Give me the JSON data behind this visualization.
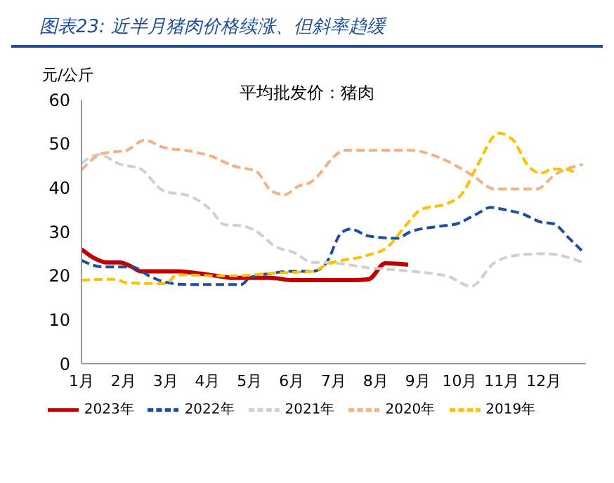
{
  "chart_data": {
    "type": "line",
    "title": "图表23: 近半月猪肉价格续涨、但斜率趋缓",
    "subtitle": "平均批发价：猪肉",
    "ylabel": "元/公斤",
    "xlim": [
      1,
      13
    ],
    "xticks": [
      {
        "value": 1,
        "label": "1月"
      },
      {
        "value": 2,
        "label": "2月"
      },
      {
        "value": 3,
        "label": "3月"
      },
      {
        "value": 4,
        "label": "4月"
      },
      {
        "value": 5,
        "label": "5月"
      },
      {
        "value": 6,
        "label": "6月"
      },
      {
        "value": 7,
        "label": "7月"
      },
      {
        "value": 8,
        "label": "8月"
      },
      {
        "value": 9,
        "label": "9月"
      },
      {
        "value": 10,
        "label": "10月"
      },
      {
        "value": 11,
        "label": "11月"
      },
      {
        "value": 12,
        "label": "12月"
      }
    ],
    "ylim": [
      0,
      60
    ],
    "yticks": [
      0,
      10,
      20,
      30,
      40,
      50,
      60
    ],
    "legend": "bottom",
    "marker": "none",
    "series": [
      {
        "name": "2023年",
        "color": "#c00000",
        "line_style": "solid",
        "x": [
          1,
          1.3,
          1.6,
          1.9,
          2.2,
          2.4,
          3,
          3.3,
          3.8,
          4.2,
          4.6,
          5,
          5.5,
          6,
          6.5,
          7,
          7.5,
          7.83,
          8.23,
          8.77
        ],
        "values": [
          26,
          24,
          23,
          23,
          22,
          21,
          21,
          21,
          20.5,
          20,
          19.5,
          19.5,
          19.5,
          19,
          19,
          19,
          19,
          19.2,
          22.8,
          22.5
        ]
      },
      {
        "name": "2022年",
        "color": "#1f4e9c",
        "line_style": "dashed",
        "x": [
          1,
          1.5,
          2.2,
          2.6,
          3,
          3.5,
          4,
          4.5,
          4.8,
          5,
          5.5,
          6,
          6.5,
          6.83,
          7.17,
          7.4,
          7.83,
          8.5,
          8.83,
          9.5,
          9.93,
          10.4,
          10.73,
          11.07,
          11.5,
          11.93,
          12.23,
          12.6,
          12.9
        ],
        "values": [
          23.5,
          22,
          22,
          20,
          18.5,
          18,
          18,
          18,
          18,
          19.5,
          20.5,
          21,
          21,
          23,
          29.6,
          30.6,
          29,
          28.5,
          30,
          31.2,
          31.8,
          34,
          35.5,
          35,
          34,
          32.2,
          31.8,
          28.5,
          25.7
        ]
      },
      {
        "name": "2021年",
        "color": "#d0d0d0",
        "line_style": "dashed",
        "x": [
          1,
          1.4,
          1.93,
          2.4,
          2.93,
          3.6,
          4.07,
          4.4,
          4.83,
          5.17,
          5.6,
          6.07,
          6.5,
          6.83,
          7.83,
          8.83,
          9.73,
          10.27,
          10.83,
          11.4,
          12.07,
          12.93
        ],
        "values": [
          45.5,
          47.5,
          45.3,
          44.3,
          39.4,
          38,
          35,
          31.6,
          31.3,
          30,
          26.7,
          25.2,
          23,
          23,
          21.8,
          21,
          19.8,
          17.6,
          23,
          24.7,
          25,
          23
        ]
      },
      {
        "name": "2020年",
        "color": "#f4b183",
        "line_style": "dashed",
        "x": [
          1,
          1.5,
          2.07,
          2.5,
          2.93,
          3.6,
          4.07,
          4.6,
          5.17,
          5.5,
          5.83,
          6.17,
          6.4,
          7.27,
          8.83,
          9.5,
          10.27,
          10.83,
          11.83,
          12.27,
          12.93
        ],
        "values": [
          44,
          47.8,
          48.5,
          50.8,
          49.2,
          48.3,
          47.2,
          45,
          43.6,
          39.4,
          38.4,
          40.4,
          41,
          48.5,
          48.5,
          46.9,
          43,
          39.7,
          39.7,
          43,
          45.3
        ]
      },
      {
        "name": "2019年",
        "color": "#ffc000",
        "line_style": "dashed",
        "x": [
          1,
          1.8,
          2.07,
          3,
          3.27,
          4.1,
          4.73,
          5.4,
          6.5,
          6.83,
          7.83,
          8.27,
          8.73,
          9.07,
          9.73,
          10.07,
          10.4,
          10.93,
          11.27,
          11.6,
          11.93,
          12.23,
          12.6,
          12.8
        ],
        "values": [
          19,
          19.2,
          18.4,
          18.2,
          20.2,
          20,
          20,
          20.5,
          21,
          22.5,
          24.7,
          26.4,
          31.6,
          35,
          36.5,
          38.8,
          44.7,
          52.4,
          50.8,
          45.3,
          43.3,
          44.3,
          44,
          43
        ]
      }
    ]
  }
}
